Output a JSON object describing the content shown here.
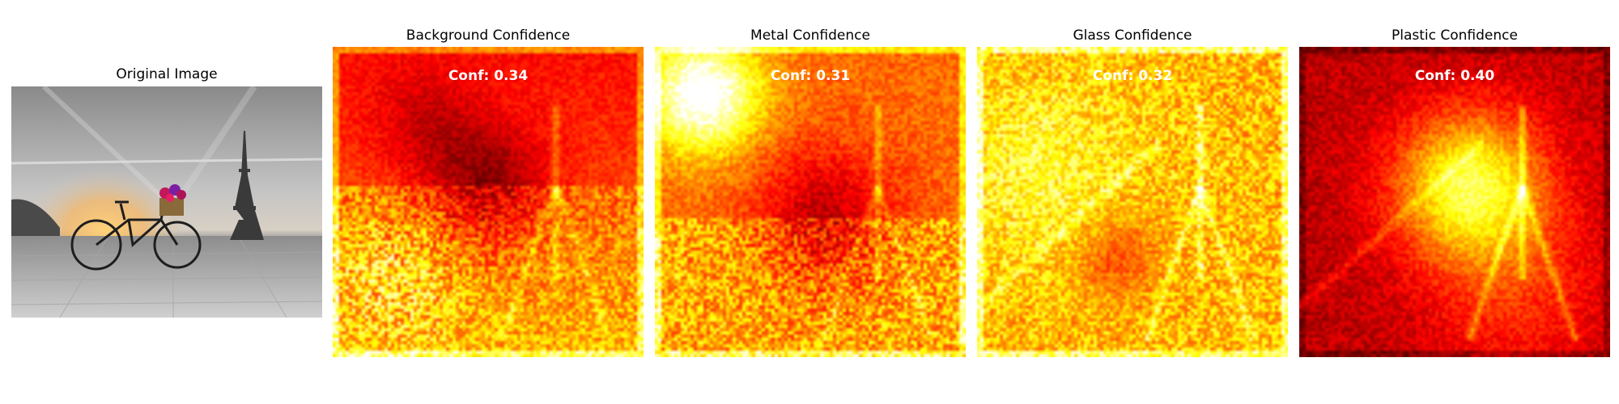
{
  "panels": {
    "original": {
      "title": "Original Image"
    },
    "maps": [
      {
        "title": "Background Confidence",
        "conf": "Conf: 0.34",
        "pattern": "background"
      },
      {
        "title": "Metal Confidence",
        "conf": "Conf: 0.31",
        "pattern": "metal"
      },
      {
        "title": "Glass Confidence",
        "conf": "Conf: 0.32",
        "pattern": "glass"
      },
      {
        "title": "Plastic Confidence",
        "conf": "Conf: 0.40",
        "pattern": "plastic"
      }
    ]
  },
  "colormap": "hot"
}
